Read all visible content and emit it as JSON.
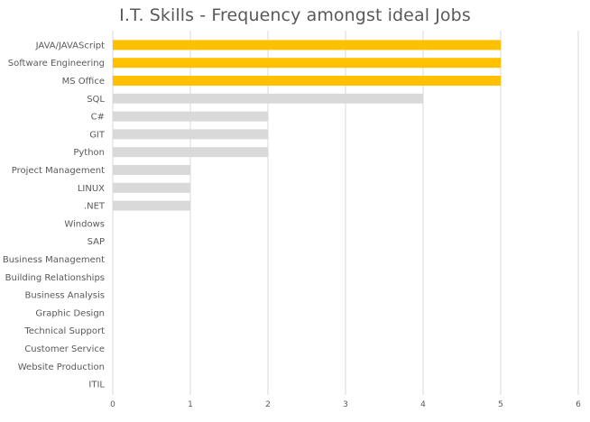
{
  "chart_data": {
    "type": "bar",
    "orientation": "horizontal",
    "title": "I.T. Skills - Frequency amongst ideal Jobs",
    "xlabel": "",
    "ylabel": "",
    "xlim": [
      0,
      6
    ],
    "xticks": [
      0,
      1,
      2,
      3,
      4,
      5,
      6
    ],
    "grid": "vertical",
    "legend": "none",
    "categories": [
      "JAVA/JAVAScript",
      "Software Engineering",
      "MS Office",
      "SQL",
      "C#",
      "GIT",
      "Python",
      "Project Management",
      "LINUX",
      ".NET",
      "Windows",
      "SAP",
      "Business Management",
      "Building Relationships",
      "Business Analysis",
      "Graphic Design",
      "Technical Support",
      "Customer Service",
      "Website Production",
      "ITIL"
    ],
    "values": [
      5,
      5,
      5,
      4,
      2,
      2,
      2,
      1,
      1,
      1,
      0,
      0,
      0,
      0,
      0,
      0,
      0,
      0,
      0,
      0
    ],
    "bar_colors": {
      "highlight": "#FFC000",
      "default": "#D9D9D9"
    },
    "highlighted_categories": [
      "JAVA/JAVAScript",
      "Software Engineering",
      "MS Office"
    ]
  },
  "colors": {
    "gridline": "#D9D9D9",
    "text": "#595959"
  }
}
